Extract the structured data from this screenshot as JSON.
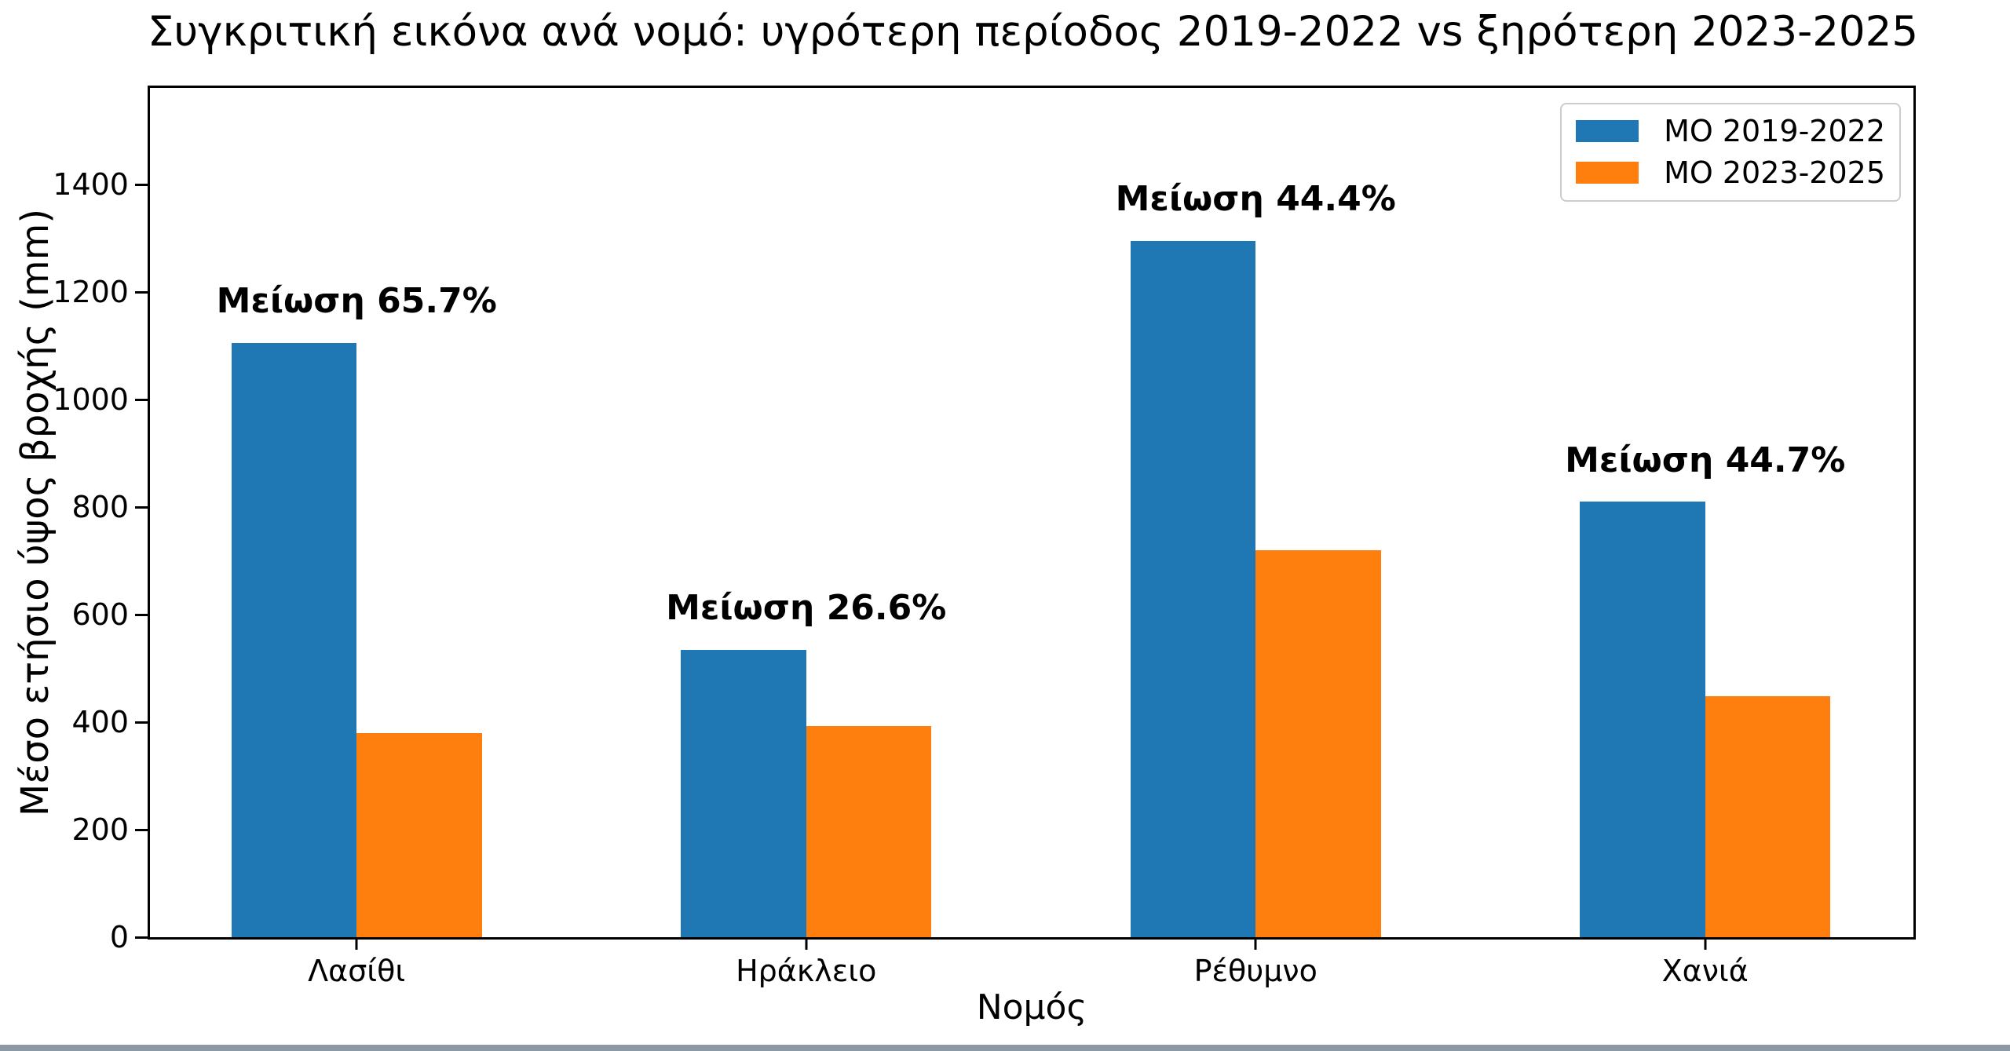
{
  "chart_data": {
    "type": "bar",
    "title": "Συγκριτική εικόνα ανά νομό: υγρότερη περίοδος 2019-2022 vs ξηρότερη 2023-2025",
    "xlabel": "Νομός",
    "ylabel": "Μέσο ετήσιο ύψος βροχής (mm)",
    "categories": [
      "Λασίθι",
      "Ηράκλειο",
      "Ρέθυμνο",
      "Χανιά"
    ],
    "series": [
      {
        "name": "ΜΟ 2019-2022",
        "color": "#1f77b4",
        "values": [
          1105,
          535,
          1295,
          810
        ]
      },
      {
        "name": "ΜΟ 2023-2025",
        "color": "#ff7f0e",
        "values": [
          380,
          393,
          720,
          448
        ]
      }
    ],
    "annotations": [
      "Μείωση 65.7%",
      "Μείωση 26.6%",
      "Μείωση 44.4%",
      "Μείωση 44.7%"
    ],
    "yticks": [
      0,
      200,
      400,
      600,
      800,
      1000,
      1200,
      1400
    ],
    "ylim": [
      0,
      1580
    ],
    "grid": false,
    "legend_position": "upper right",
    "axis_color": "#000000",
    "legend_border_color": "#cccccc",
    "background_color": "#ffffff"
  }
}
